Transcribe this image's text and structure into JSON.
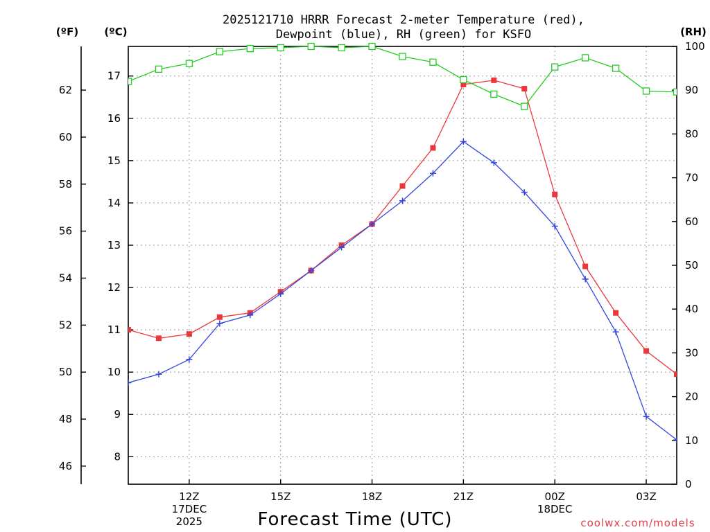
{
  "colors": {
    "temperature": "#e8383c",
    "dewpoint": "#3346dd",
    "rh": "#22cc22",
    "grid": "#9a9a9a",
    "credit": "#e0404a"
  },
  "chart_data": {
    "type": "line",
    "title_line1": "2025121710 HRRR Forecast 2-meter Temperature (red),",
    "title_line2": "Dewpoint (blue), RH (green) for KSFO",
    "xlabel": "Forecast Time (UTC)",
    "credit": "coolwx.com/models",
    "unit_f": "(ºF)",
    "unit_c": "(ºC)",
    "unit_rh": "(RH)",
    "x_range_hours": [
      10,
      28
    ],
    "x_ticks": [
      {
        "hour": 12,
        "lines": [
          "12Z",
          "17DEC",
          "2025"
        ]
      },
      {
        "hour": 15,
        "lines": [
          "15Z"
        ]
      },
      {
        "hour": 18,
        "lines": [
          "18Z"
        ]
      },
      {
        "hour": 21,
        "lines": [
          "21Z"
        ]
      },
      {
        "hour": 24,
        "lines": [
          "00Z",
          "18DEC"
        ]
      },
      {
        "hour": 27,
        "lines": [
          "03Z"
        ]
      }
    ],
    "celsius_axis": {
      "range": [
        7.35,
        17.7
      ],
      "ticks": [
        8,
        9,
        10,
        11,
        12,
        13,
        14,
        15,
        16,
        17
      ]
    },
    "fahrenheit_axis": {
      "ticks": [
        46,
        48,
        50,
        52,
        54,
        56,
        58,
        60,
        62
      ]
    },
    "rh_axis": {
      "range": [
        0,
        100
      ],
      "ticks": [
        0,
        10,
        20,
        30,
        40,
        50,
        60,
        70,
        80,
        90,
        100
      ]
    },
    "series": [
      {
        "name": "Temperature",
        "unit": "C",
        "marker": "filled-square",
        "x": [
          10,
          11,
          12,
          13,
          14,
          15,
          16,
          17,
          18,
          19,
          20,
          21,
          22,
          23,
          24,
          25,
          26,
          27,
          28
        ],
        "values": [
          11.0,
          10.8,
          10.9,
          11.3,
          11.4,
          11.9,
          12.4,
          13.0,
          13.5,
          14.4,
          15.3,
          16.8,
          16.9,
          16.7,
          14.2,
          12.5,
          11.4,
          10.5,
          9.95
        ]
      },
      {
        "name": "Dewpoint",
        "unit": "C",
        "marker": "plus",
        "x": [
          10,
          11,
          12,
          13,
          14,
          15,
          16,
          17,
          18,
          19,
          20,
          21,
          22,
          23,
          24,
          25,
          26,
          27,
          28
        ],
        "values": [
          9.75,
          9.95,
          10.3,
          11.15,
          11.35,
          11.85,
          12.4,
          12.95,
          13.5,
          14.05,
          14.7,
          15.45,
          14.95,
          14.25,
          13.45,
          12.2,
          10.95,
          8.95,
          8.4
        ]
      },
      {
        "name": "Relative Humidity",
        "unit": "%",
        "marker": "open-square",
        "x": [
          10,
          11,
          12,
          13,
          14,
          15,
          16,
          17,
          18,
          19,
          20,
          21,
          22,
          23,
          24,
          25,
          26,
          27,
          28
        ],
        "values": [
          92,
          94.8,
          96.1,
          98.8,
          99.5,
          99.7,
          100,
          99.7,
          100,
          97.7,
          96.4,
          92.4,
          89.1,
          86.3,
          95.3,
          97.4,
          95,
          89.8,
          89.6
        ]
      }
    ]
  }
}
